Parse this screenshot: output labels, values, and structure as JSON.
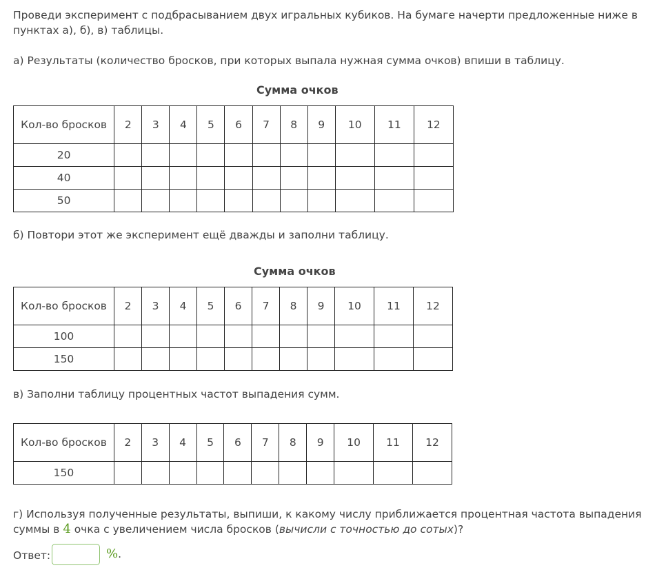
{
  "intro": [
    "Проведи эксперимент с подбрасыванием двух игральных кубиков. На бумаге начерти предложенные ниже в",
    "пунктах а), б), в) таблицы."
  ],
  "part_a": "а) Результаты (количество бросков, при которых выпала нужная сумма очков) впиши в таблицу.",
  "part_b": "б) Повтори этот же эксперимент ещё дважды и заполни таблицу.",
  "part_v": "в) Заполни таблицу процентных частот выпадения сумм.",
  "table_caption": "Сумма очков",
  "row_header": "Кол-во бросков",
  "sums": [
    "2",
    "3",
    "4",
    "5",
    "6",
    "7",
    "8",
    "9",
    "10",
    "11",
    "12"
  ],
  "tables": [
    {
      "caption": "Сумма очков",
      "rows": [
        "20",
        "40",
        "50"
      ]
    },
    {
      "caption": "Сумма очков",
      "rows": [
        "100",
        "150"
      ]
    },
    {
      "caption": "",
      "rows": [
        "150"
      ]
    }
  ],
  "part_g": {
    "line1": "г) Используя полученные результаты, выпиши, к какому числу приближается процентная частота выпадения",
    "line2_pre": "суммы в ",
    "number": "4",
    "line2_mid": " очка с увеличением числа бросков (",
    "italic": "вычисли с точностью до сотых",
    "line2_end": ")?"
  },
  "answer": {
    "label": "Ответ:",
    "value": "",
    "unit": "%",
    "end": "."
  }
}
